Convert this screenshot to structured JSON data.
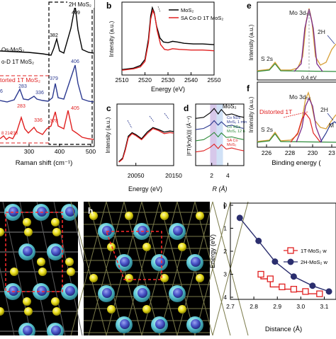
{
  "figure": {
    "panel_letters": {
      "b": "b",
      "c": "c",
      "d": "d",
      "e": "e",
      "f": "f",
      "h": "h",
      "i": "i"
    }
  },
  "raman": {
    "xlabel": "Raman shift (cm⁻¹)",
    "xticks": [
      "300",
      "400",
      "500"
    ],
    "trace_labels": [
      {
        "text": "Os-MoS₂",
        "color": "#000000"
      },
      {
        "text": "o-D 1T MoS₂",
        "color": "#000000"
      },
      {
        "text": "torted 1T MoS₂",
        "color": "#e02020"
      }
    ],
    "badge": "2H MoS₂",
    "peak_labels": [
      {
        "text": "409",
        "color": "#000000"
      },
      {
        "text": "382",
        "color": "#000000"
      },
      {
        "text": "406",
        "color": "#2b3990"
      },
      {
        "text": "379",
        "color": "#2b3990"
      },
      {
        "text": "283",
        "color": "#2b3990"
      },
      {
        "text": "336",
        "color": "#2b3990"
      },
      {
        "text": "36",
        "color": "#2b3990"
      },
      {
        "text": "283",
        "color": "#e02020"
      },
      {
        "text": "336",
        "color": "#e02020"
      },
      {
        "text": "405",
        "color": "#e02020"
      },
      {
        "text": "378",
        "color": "#e02020"
      },
      {
        "text": "8",
        "color": "#e02020"
      },
      {
        "text": "214",
        "color": "#e02020"
      },
      {
        "text": "238",
        "color": "#e02020"
      }
    ]
  },
  "chart_data": [
    {
      "panel": "b",
      "type": "line",
      "xlabel": "Energy (eV)",
      "ylabel": "Intensity (a.u.)",
      "xlim": [
        2510,
        2550
      ],
      "xticks": [
        "2510",
        "2520",
        "2530",
        "2540",
        "2550"
      ],
      "legend_position": "top-right",
      "series": [
        {
          "name": "MoS₂",
          "color": "#000000",
          "points": [
            [
              2510,
              0.05
            ],
            [
              2515,
              0.07
            ],
            [
              2518,
              0.11
            ],
            [
              2520,
              0.2
            ],
            [
              2521.5,
              0.5
            ],
            [
              2522.5,
              0.85
            ],
            [
              2523.2,
              0.97
            ],
            [
              2524,
              0.9
            ],
            [
              2525,
              0.7
            ],
            [
              2526.5,
              0.52
            ],
            [
              2528,
              0.46
            ],
            [
              2530,
              0.45
            ],
            [
              2532,
              0.47
            ],
            [
              2534,
              0.46
            ],
            [
              2537,
              0.44
            ],
            [
              2541,
              0.43
            ],
            [
              2545,
              0.43
            ],
            [
              2550,
              0.42
            ]
          ]
        },
        {
          "name": "SA Co-D 1T MoS₂",
          "color": "#e02020",
          "points": [
            [
              2510,
              0.04
            ],
            [
              2515,
              0.06
            ],
            [
              2518,
              0.09
            ],
            [
              2520,
              0.17
            ],
            [
              2521.5,
              0.45
            ],
            [
              2522.5,
              0.8
            ],
            [
              2523.4,
              0.93
            ],
            [
              2524.3,
              0.85
            ],
            [
              2525.3,
              0.63
            ],
            [
              2526.8,
              0.42
            ],
            [
              2528.5,
              0.35
            ],
            [
              2530,
              0.34
            ],
            [
              2532,
              0.36
            ],
            [
              2535,
              0.35
            ],
            [
              2540,
              0.34
            ],
            [
              2545,
              0.34
            ],
            [
              2550,
              0.33
            ]
          ]
        }
      ]
    },
    {
      "panel": "c",
      "type": "line",
      "xlabel": "Energy (eV)",
      "ylabel": "Intensity (a.u.)",
      "xlim": [
        20000,
        20150
      ],
      "xticks": [
        "20050",
        "20150"
      ],
      "series": [
        {
          "name": "",
          "color": "#000000",
          "points": [
            [
              20005,
              0.05
            ],
            [
              20015,
              0.12
            ],
            [
              20022,
              0.3
            ],
            [
              20030,
              0.55
            ],
            [
              20040,
              0.62
            ],
            [
              20050,
              0.58
            ],
            [
              20065,
              0.5
            ],
            [
              20080,
              0.63
            ],
            [
              20095,
              0.72
            ],
            [
              20110,
              0.68
            ],
            [
              20125,
              0.63
            ],
            [
              20140,
              0.65
            ],
            [
              20150,
              0.64
            ]
          ]
        },
        {
          "name": "",
          "color": "#e02020",
          "points": [
            [
              20005,
              0.04
            ],
            [
              20015,
              0.1
            ],
            [
              20022,
              0.27
            ],
            [
              20030,
              0.52
            ],
            [
              20040,
              0.6
            ],
            [
              20050,
              0.56
            ],
            [
              20065,
              0.48
            ],
            [
              20080,
              0.6
            ],
            [
              20095,
              0.7
            ],
            [
              20110,
              0.66
            ],
            [
              20125,
              0.6
            ],
            [
              20140,
              0.62
            ],
            [
              20150,
              0.61
            ]
          ]
        }
      ]
    },
    {
      "panel": "d",
      "type": "line",
      "xlabel": "R (Å)",
      "ylabel": "|FT(k³χ(k))| (Å⁻⁴)",
      "xlim": [
        0,
        6
      ],
      "xticks": [
        "2",
        "4"
      ],
      "bands": [
        {
          "from": 1.8,
          "to": 2.6,
          "color": "#b79ad8"
        },
        {
          "from": 2.6,
          "to": 3.4,
          "color": "#a9c8ef"
        }
      ],
      "series": [
        {
          "name": "MoS₂",
          "color": "#000000",
          "offset": 4,
          "points": [
            [
              0,
              0.1
            ],
            [
              1,
              0.2
            ],
            [
              1.8,
              0.6
            ],
            [
              2.3,
              1.0
            ],
            [
              2.8,
              0.5
            ],
            [
              3.2,
              0.9
            ],
            [
              3.8,
              0.4
            ],
            [
              4.5,
              0.5
            ],
            [
              5.3,
              0.3
            ],
            [
              6,
              0.2
            ]
          ]
        },
        {
          "name": "Co NDs MoS₂ 1 min",
          "color": "#2b3990",
          "offset": 3,
          "points": [
            [
              0,
              0.1
            ],
            [
              1,
              0.2
            ],
            [
              1.8,
              0.5
            ],
            [
              2.3,
              0.9
            ],
            [
              2.8,
              0.5
            ],
            [
              3.2,
              0.8
            ],
            [
              3.8,
              0.4
            ],
            [
              4.5,
              0.5
            ],
            [
              5.3,
              0.3
            ],
            [
              6,
              0.2
            ]
          ]
        },
        {
          "name": "Co NDs MoS₂ 12 h",
          "color": "#2e8b3a",
          "offset": 2,
          "points": [
            [
              0,
              0.1
            ],
            [
              1,
              0.2
            ],
            [
              1.8,
              0.55
            ],
            [
              2.3,
              0.85
            ],
            [
              2.8,
              0.45
            ],
            [
              3.2,
              0.8
            ],
            [
              3.8,
              0.4
            ],
            [
              4.5,
              0.45
            ],
            [
              5.3,
              0.3
            ],
            [
              6,
              0.2
            ]
          ]
        },
        {
          "name": "SA Co MoS₂",
          "color": "#e02020",
          "offset": 1,
          "points": [
            [
              0,
              0.1
            ],
            [
              1,
              0.2
            ],
            [
              1.8,
              0.5
            ],
            [
              2.3,
              0.8
            ],
            [
              2.8,
              0.4
            ],
            [
              3.2,
              0.75
            ],
            [
              3.8,
              0.35
            ],
            [
              4.5,
              0.45
            ],
            [
              5.3,
              0.3
            ],
            [
              6,
              0.2
            ]
          ]
        }
      ]
    },
    {
      "panel": "i",
      "type": "line",
      "xlabel": "Distance (Å)",
      "ylabel": "Energy (eV)",
      "xlim": [
        2.7,
        3.15
      ],
      "ylim": [
        4,
        0
      ],
      "xticks": [
        "2.7",
        "2.8",
        "2.9",
        "3.0",
        "3.1"
      ],
      "yticks": [
        "0",
        "1",
        "2",
        "3",
        "4"
      ],
      "legend_position": "right",
      "series": [
        {
          "name": "1T-MoS₂ w",
          "color": "#e02020",
          "marker": "square",
          "points": [
            [
              2.83,
              3.0
            ],
            [
              2.87,
              3.2
            ],
            [
              2.92,
              3.55
            ],
            [
              2.97,
              3.65
            ],
            [
              3.02,
              3.75
            ],
            [
              3.08,
              3.85
            ]
          ]
        },
        {
          "name": "2H-MoS₂ w",
          "color": "#2b2e6e",
          "marker": "circle",
          "points": [
            [
              2.74,
              0.55
            ],
            [
              2.82,
              1.55
            ],
            [
              2.89,
              2.45
            ],
            [
              2.97,
              3.1
            ],
            [
              3.05,
              3.5
            ],
            [
              3.12,
              3.75
            ]
          ]
        }
      ]
    }
  ],
  "xps": {
    "e": {
      "ylabel": "Intensity (a.u.)",
      "labels": {
        "peak": "Mo 3d₅₂",
        "s2s": "S 2s",
        "h2": "2H",
        "shift": "0.4 eV"
      }
    },
    "f": {
      "ylabel": "Intensity (a.u.)",
      "xlabel": "Binding energy (",
      "xticks": [
        "226",
        "228",
        "230",
        "23"
      ],
      "labels": {
        "peak": "Mo 3d₅₂",
        "s2s": "S 2s",
        "h2": "2H",
        "distorted": "Distorted 1T",
        "m": "M"
      }
    }
  }
}
